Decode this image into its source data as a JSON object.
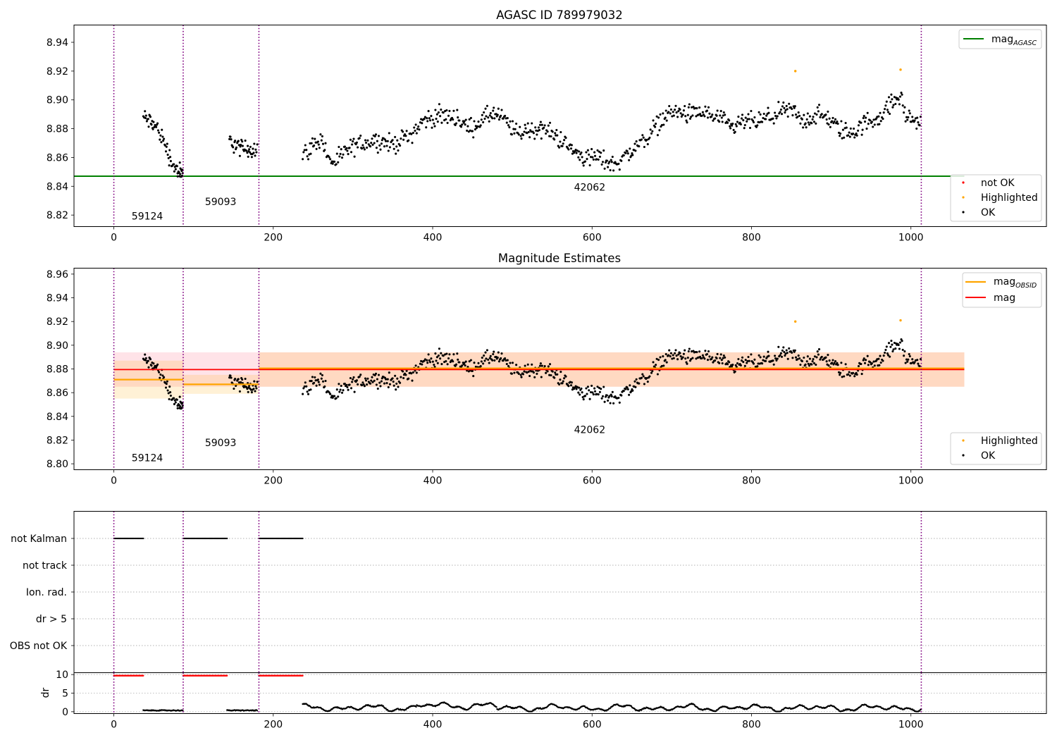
{
  "chart_data": [
    {
      "id": "p1",
      "type": "scatter",
      "title": "AGASC ID 789979032",
      "xlim": [
        -50,
        1170
      ],
      "ylim": [
        8.812,
        8.952
      ],
      "xticks": [
        0,
        200,
        400,
        600,
        800,
        1000
      ],
      "yticks": [
        8.82,
        8.84,
        8.86,
        8.88,
        8.9,
        8.92,
        8.94
      ],
      "ytick_labels": [
        "8.82",
        "8.84",
        "8.86",
        "8.88",
        "8.90",
        "8.92",
        "8.94"
      ],
      "grid": false,
      "lines": [
        {
          "name": "mag",
          "sub": "AGASC",
          "y": 8.847,
          "x": [
            -50,
            1067
          ],
          "color": "#008000"
        }
      ],
      "vlines": [
        0,
        87,
        182,
        1013
      ],
      "vline_color": "#800080",
      "obsids": [
        {
          "label": "59124",
          "x": 42,
          "y": 8.817
        },
        {
          "label": "59093",
          "x": 134,
          "y": 8.827
        },
        {
          "label": "42062",
          "x": 597,
          "y": 8.837
        }
      ],
      "highlighted": [
        [
          855,
          8.92
        ],
        [
          987,
          8.921
        ]
      ],
      "legend_lines": {
        "placement": "top-right",
        "entries": [
          {
            "name": "mag",
            "sub": "AGASC",
            "color": "#008000"
          }
        ]
      },
      "legend_points": {
        "placement": "lower-right",
        "entries": [
          {
            "name": "not OK",
            "color": "#ff0000"
          },
          {
            "name": "Highlighted",
            "color": "#ffa500"
          },
          {
            "name": "OK",
            "color": "#000000"
          }
        ]
      }
    },
    {
      "id": "p2",
      "type": "scatter",
      "title": "Magnitude Estimates",
      "xlim": [
        -50,
        1170
      ],
      "ylim": [
        8.795,
        8.965
      ],
      "xticks": [
        0,
        200,
        400,
        600,
        800,
        1000
      ],
      "yticks": [
        8.8,
        8.82,
        8.84,
        8.86,
        8.88,
        8.9,
        8.92,
        8.94,
        8.96
      ],
      "ytick_labels": [
        "8.80",
        "8.82",
        "8.84",
        "8.86",
        "8.88",
        "8.90",
        "8.92",
        "8.94",
        "8.96"
      ],
      "grid": false,
      "mag": {
        "name": "mag",
        "y": 8.8795,
        "band": [
          8.865,
          8.894
        ],
        "x": [
          -50,
          1067
        ],
        "color": "#ff0000"
      },
      "mag_obsid": [
        {
          "x": [
            0,
            87
          ],
          "y": 8.871,
          "band": [
            8.855,
            8.887
          ]
        },
        {
          "x": [
            87,
            182
          ],
          "y": 8.867,
          "band": [
            8.859,
            8.875
          ]
        },
        {
          "x": [
            182,
            1067
          ],
          "y": 8.8805,
          "band": [
            8.865,
            8.894
          ]
        }
      ],
      "mag_obsid_label": {
        "name": "mag",
        "sub": "OBSID",
        "color": "#ffa500"
      },
      "vlines": [
        0,
        87,
        182,
        1013
      ],
      "obsids": [
        {
          "label": "59124",
          "x": 42,
          "y": 8.802
        },
        {
          "label": "59093",
          "x": 134,
          "y": 8.815
        },
        {
          "label": "42062",
          "x": 597,
          "y": 8.826
        }
      ],
      "highlighted": [
        [
          855,
          8.92
        ],
        [
          987,
          8.921
        ]
      ],
      "legend_lines": {
        "placement": "top-right",
        "entries": [
          {
            "name": "mag",
            "sub": "OBSID",
            "color": "#ffa500"
          },
          {
            "name": "mag",
            "sub": "",
            "color": "#ff0000"
          }
        ]
      },
      "legend_points": {
        "placement": "lower-right",
        "entries": [
          {
            "name": "Highlighted",
            "color": "#ffa500"
          },
          {
            "name": "OK",
            "color": "#000000"
          }
        ]
      }
    },
    {
      "id": "p3",
      "type": "scatter",
      "title": "",
      "xlim": [
        -50,
        1170
      ],
      "flag_labels": [
        "not Kalman",
        "not track",
        "Ion. rad.",
        "dr > 5",
        "OBS not OK"
      ],
      "flag_segments": {
        "not Kalman": [
          [
            0,
            37
          ],
          [
            87,
            142
          ],
          [
            182,
            237
          ]
        ]
      },
      "vlines": [
        0,
        87,
        182,
        1013
      ]
    },
    {
      "id": "p4",
      "type": "scatter",
      "title": "",
      "xlim": [
        -50,
        1170
      ],
      "ylim": [
        -0.5,
        10.5
      ],
      "ylabel": "dr",
      "xticks": [
        0,
        200,
        400,
        600,
        800,
        1000
      ],
      "yticks": [
        0,
        5,
        10
      ],
      "ytick_labels": [
        "0",
        "5",
        "10"
      ],
      "red_segments": [
        [
          0,
          37
        ],
        [
          87,
          142
        ],
        [
          182,
          237
        ]
      ],
      "red_value": 9.7,
      "vlines": [
        0,
        87,
        182,
        1013
      ]
    }
  ]
}
